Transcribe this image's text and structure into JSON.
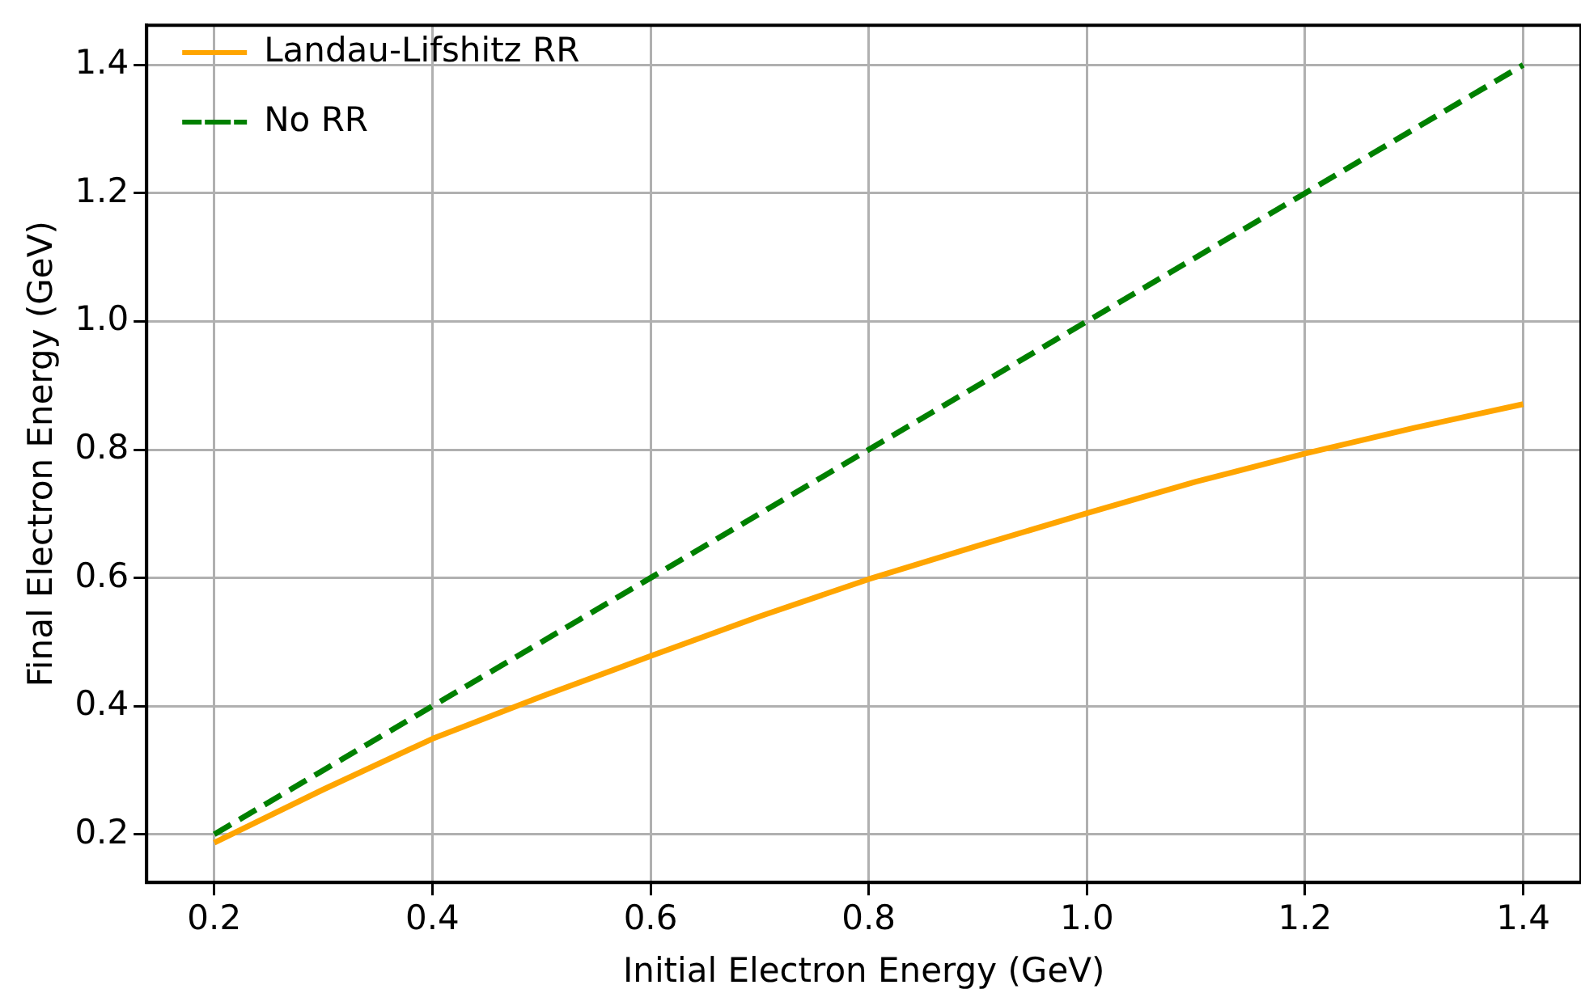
{
  "chart_data": {
    "type": "line",
    "xlabel": "Initial Electron Energy (GeV)",
    "ylabel": "Final Electron Energy (GeV)",
    "x": [
      0.2,
      0.3,
      0.4,
      0.5,
      0.6,
      0.7,
      0.8,
      0.9,
      1.0,
      1.1,
      1.2,
      1.3,
      1.4
    ],
    "series": [
      {
        "name": "Landau-Lifshitz RR",
        "color": "#ffa500",
        "line_style": "solid",
        "values": [
          0.187,
          0.27,
          0.349,
          0.415,
          0.478,
          0.54,
          0.598,
          0.65,
          0.701,
          0.75,
          0.794,
          0.834,
          0.871
        ]
      },
      {
        "name": "No RR",
        "color": "#008000",
        "line_style": "dashed",
        "values": [
          0.2,
          0.3,
          0.4,
          0.5,
          0.6,
          0.7,
          0.8,
          0.9,
          1.0,
          1.1,
          1.2,
          1.3,
          1.4
        ]
      }
    ],
    "xlim": [
      0.138,
      1.453
    ],
    "ylim": [
      0.125,
      1.462
    ],
    "xticks": [
      0.2,
      0.4,
      0.6,
      0.8,
      {
        "value": 1,
        "label": "1.0"
      },
      1.2,
      1.4
    ],
    "yticks": [
      0.2,
      0.4,
      0.6,
      0.8,
      {
        "value": 1,
        "label": "1.0"
      },
      1.2,
      1.4
    ],
    "grid": true,
    "legend": "top left",
    "marker": "none"
  }
}
